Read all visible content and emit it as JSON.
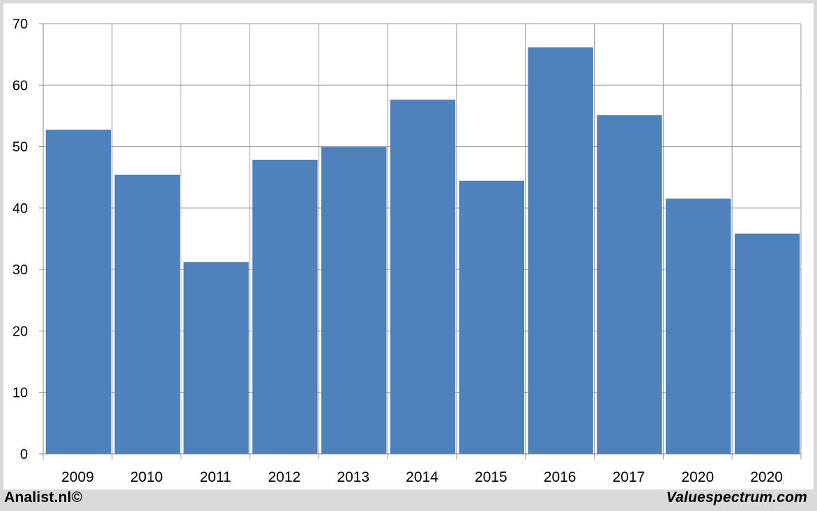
{
  "chart_data": {
    "type": "bar",
    "categories": [
      "2009",
      "2010",
      "2011",
      "2012",
      "2013",
      "2014",
      "2015",
      "2016",
      "2017",
      "2020",
      "2020"
    ],
    "values": [
      52.7,
      45.4,
      31.2,
      47.8,
      49.9,
      57.6,
      44.4,
      66.1,
      55.1,
      41.5,
      35.8
    ],
    "title": "",
    "xlabel": "",
    "ylabel": "",
    "ylim": [
      0,
      70
    ],
    "yticks": [
      0,
      10,
      20,
      30,
      40,
      50,
      60,
      70
    ],
    "grid": true,
    "bar_color": "#4f81bd",
    "grid_color": "#969696"
  },
  "footer": {
    "left": "Analist.nl©",
    "right": "Valuespectrum.com"
  }
}
